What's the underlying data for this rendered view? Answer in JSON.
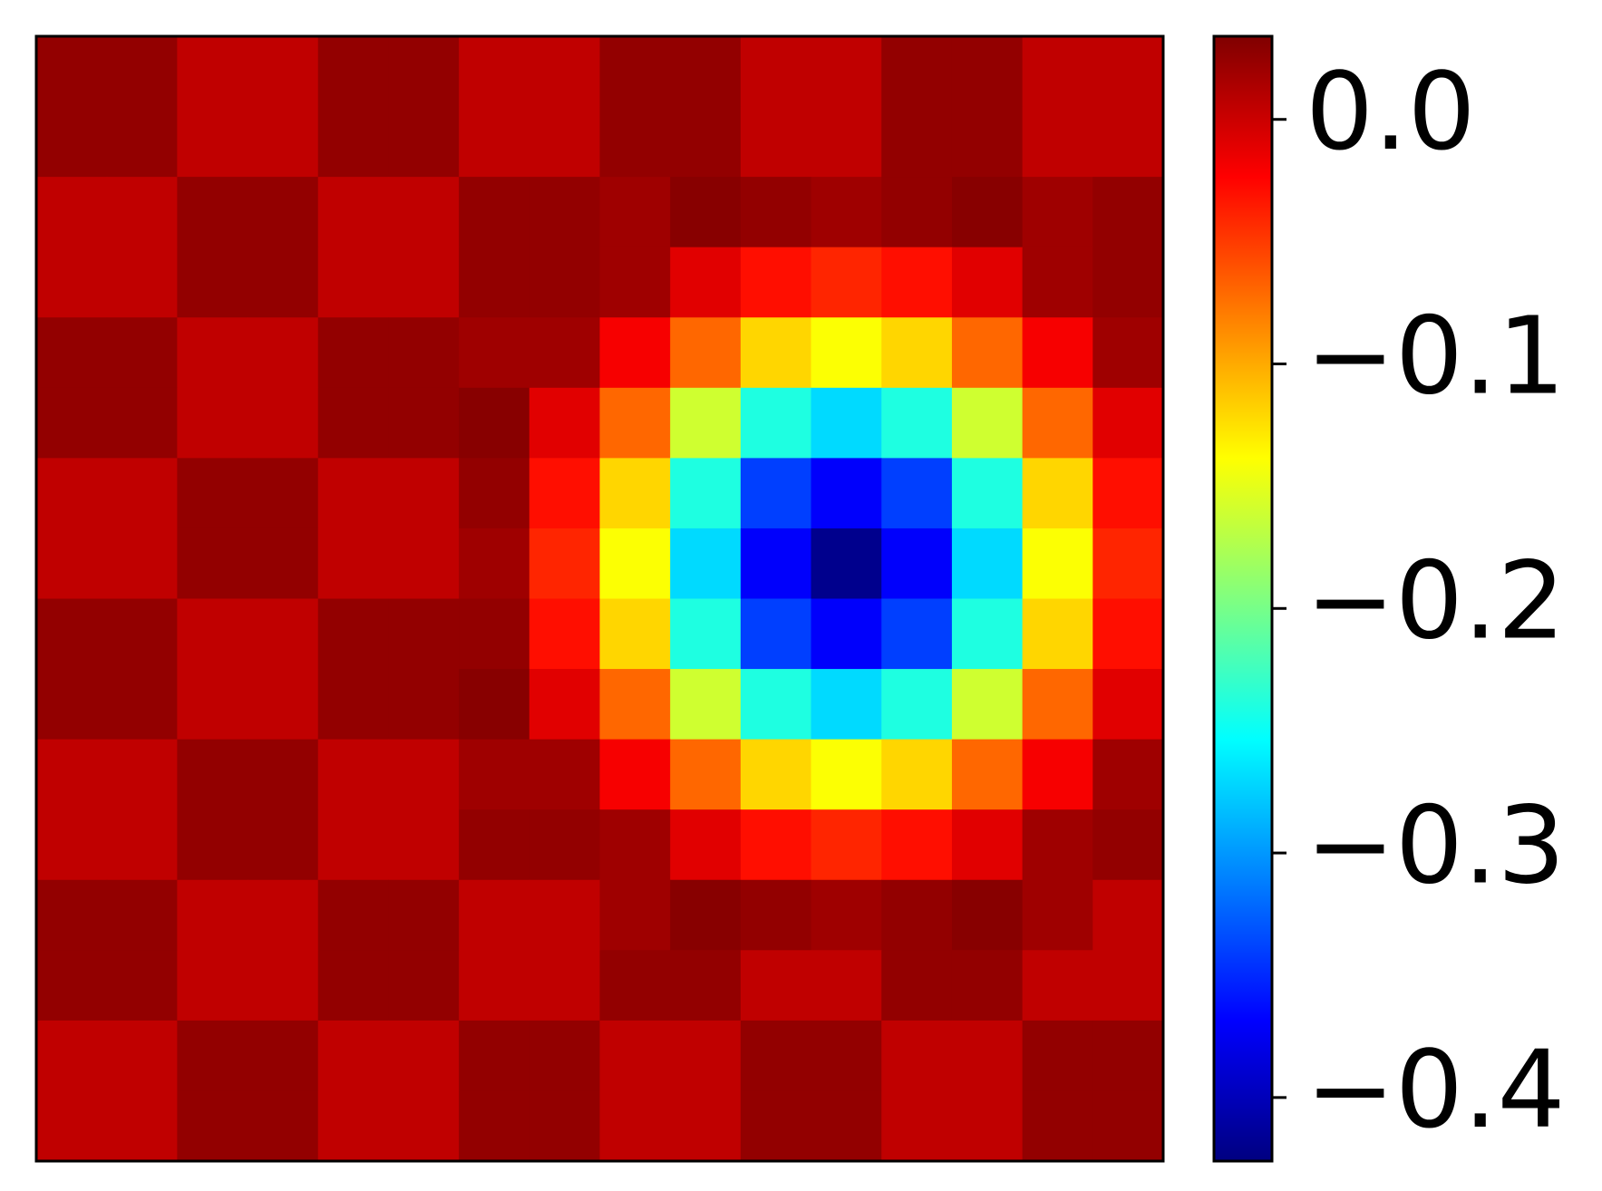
{
  "chart_data": {
    "type": "heatmap",
    "colormap": "jet",
    "zlim": [
      -0.426,
      0.034
    ],
    "zticks": [
      {
        "value": 0,
        "label": "0.0"
      },
      {
        "value": -0.1,
        "label": "−0.1"
      },
      {
        "value": -0.2,
        "label": "−0.2"
      },
      {
        "value": -0.3,
        "label": "−0.3"
      },
      {
        "value": -0.4,
        "label": "−0.4"
      }
    ],
    "z": [
      [
        0.025,
        0.025,
        0.005,
        0.005,
        0.025,
        0.025,
        0.005,
        0.005,
        0.025,
        0.025,
        0.005,
        0.005,
        0.025,
        0.025,
        0.005,
        0.005
      ],
      [
        0.025,
        0.025,
        0.005,
        0.005,
        0.025,
        0.025,
        0.005,
        0.005,
        0.025,
        0.025,
        0.005,
        0.005,
        0.025,
        0.025,
        0.005,
        0.005
      ],
      [
        0.005,
        0.005,
        0.025,
        0.025,
        0.005,
        0.005,
        0.025,
        0.025,
        0.02,
        0.03,
        0.025,
        0.02,
        0.025,
        0.03,
        0.02,
        0.025
      ],
      [
        0.005,
        0.005,
        0.025,
        0.025,
        0.005,
        0.005,
        0.025,
        0.025,
        0.02,
        -0.01,
        -0.03,
        -0.04,
        -0.03,
        -0.01,
        0.02,
        0.025
      ],
      [
        0.025,
        0.025,
        0.005,
        0.005,
        0.025,
        0.025,
        0.02,
        0.02,
        -0.02,
        -0.07,
        -0.12,
        -0.14,
        -0.12,
        -0.07,
        -0.02,
        0.02
      ],
      [
        0.025,
        0.025,
        0.005,
        0.005,
        0.025,
        0.025,
        0.03,
        -0.01,
        -0.07,
        -0.16,
        -0.24,
        -0.27,
        -0.24,
        -0.16,
        -0.07,
        -0.01
      ],
      [
        0.005,
        0.005,
        0.025,
        0.025,
        0.005,
        0.005,
        0.025,
        -0.03,
        -0.12,
        -0.24,
        -0.34,
        -0.37,
        -0.34,
        -0.24,
        -0.12,
        -0.03
      ],
      [
        0.005,
        0.005,
        0.025,
        0.025,
        0.005,
        0.005,
        0.02,
        -0.04,
        -0.14,
        -0.27,
        -0.37,
        -0.42,
        -0.37,
        -0.27,
        -0.14,
        -0.04
      ],
      [
        0.025,
        0.025,
        0.005,
        0.005,
        0.025,
        0.025,
        0.025,
        -0.03,
        -0.12,
        -0.24,
        -0.34,
        -0.37,
        -0.34,
        -0.24,
        -0.12,
        -0.03
      ],
      [
        0.025,
        0.025,
        0.005,
        0.005,
        0.025,
        0.025,
        0.03,
        -0.01,
        -0.07,
        -0.16,
        -0.24,
        -0.27,
        -0.24,
        -0.16,
        -0.07,
        -0.01
      ],
      [
        0.005,
        0.005,
        0.025,
        0.025,
        0.005,
        0.005,
        0.02,
        0.02,
        -0.02,
        -0.07,
        -0.12,
        -0.14,
        -0.12,
        -0.07,
        -0.02,
        0.02
      ],
      [
        0.005,
        0.005,
        0.025,
        0.025,
        0.005,
        0.005,
        0.025,
        0.025,
        0.02,
        -0.01,
        -0.03,
        -0.04,
        -0.03,
        -0.01,
        0.02,
        0.025
      ],
      [
        0.025,
        0.025,
        0.005,
        0.005,
        0.025,
        0.025,
        0.005,
        0.005,
        0.02,
        0.03,
        0.025,
        0.02,
        0.025,
        0.03,
        0.02,
        0.005
      ],
      [
        0.025,
        0.025,
        0.005,
        0.005,
        0.025,
        0.025,
        0.005,
        0.005,
        0.025,
        0.025,
        0.005,
        0.005,
        0.025,
        0.025,
        0.005,
        0.005
      ],
      [
        0.005,
        0.005,
        0.025,
        0.025,
        0.005,
        0.005,
        0.025,
        0.025,
        0.005,
        0.005,
        0.025,
        0.025,
        0.005,
        0.005,
        0.025,
        0.025
      ],
      [
        0.005,
        0.005,
        0.025,
        0.025,
        0.005,
        0.005,
        0.025,
        0.025,
        0.005,
        0.005,
        0.025,
        0.025,
        0.005,
        0.005,
        0.025,
        0.025
      ]
    ]
  }
}
